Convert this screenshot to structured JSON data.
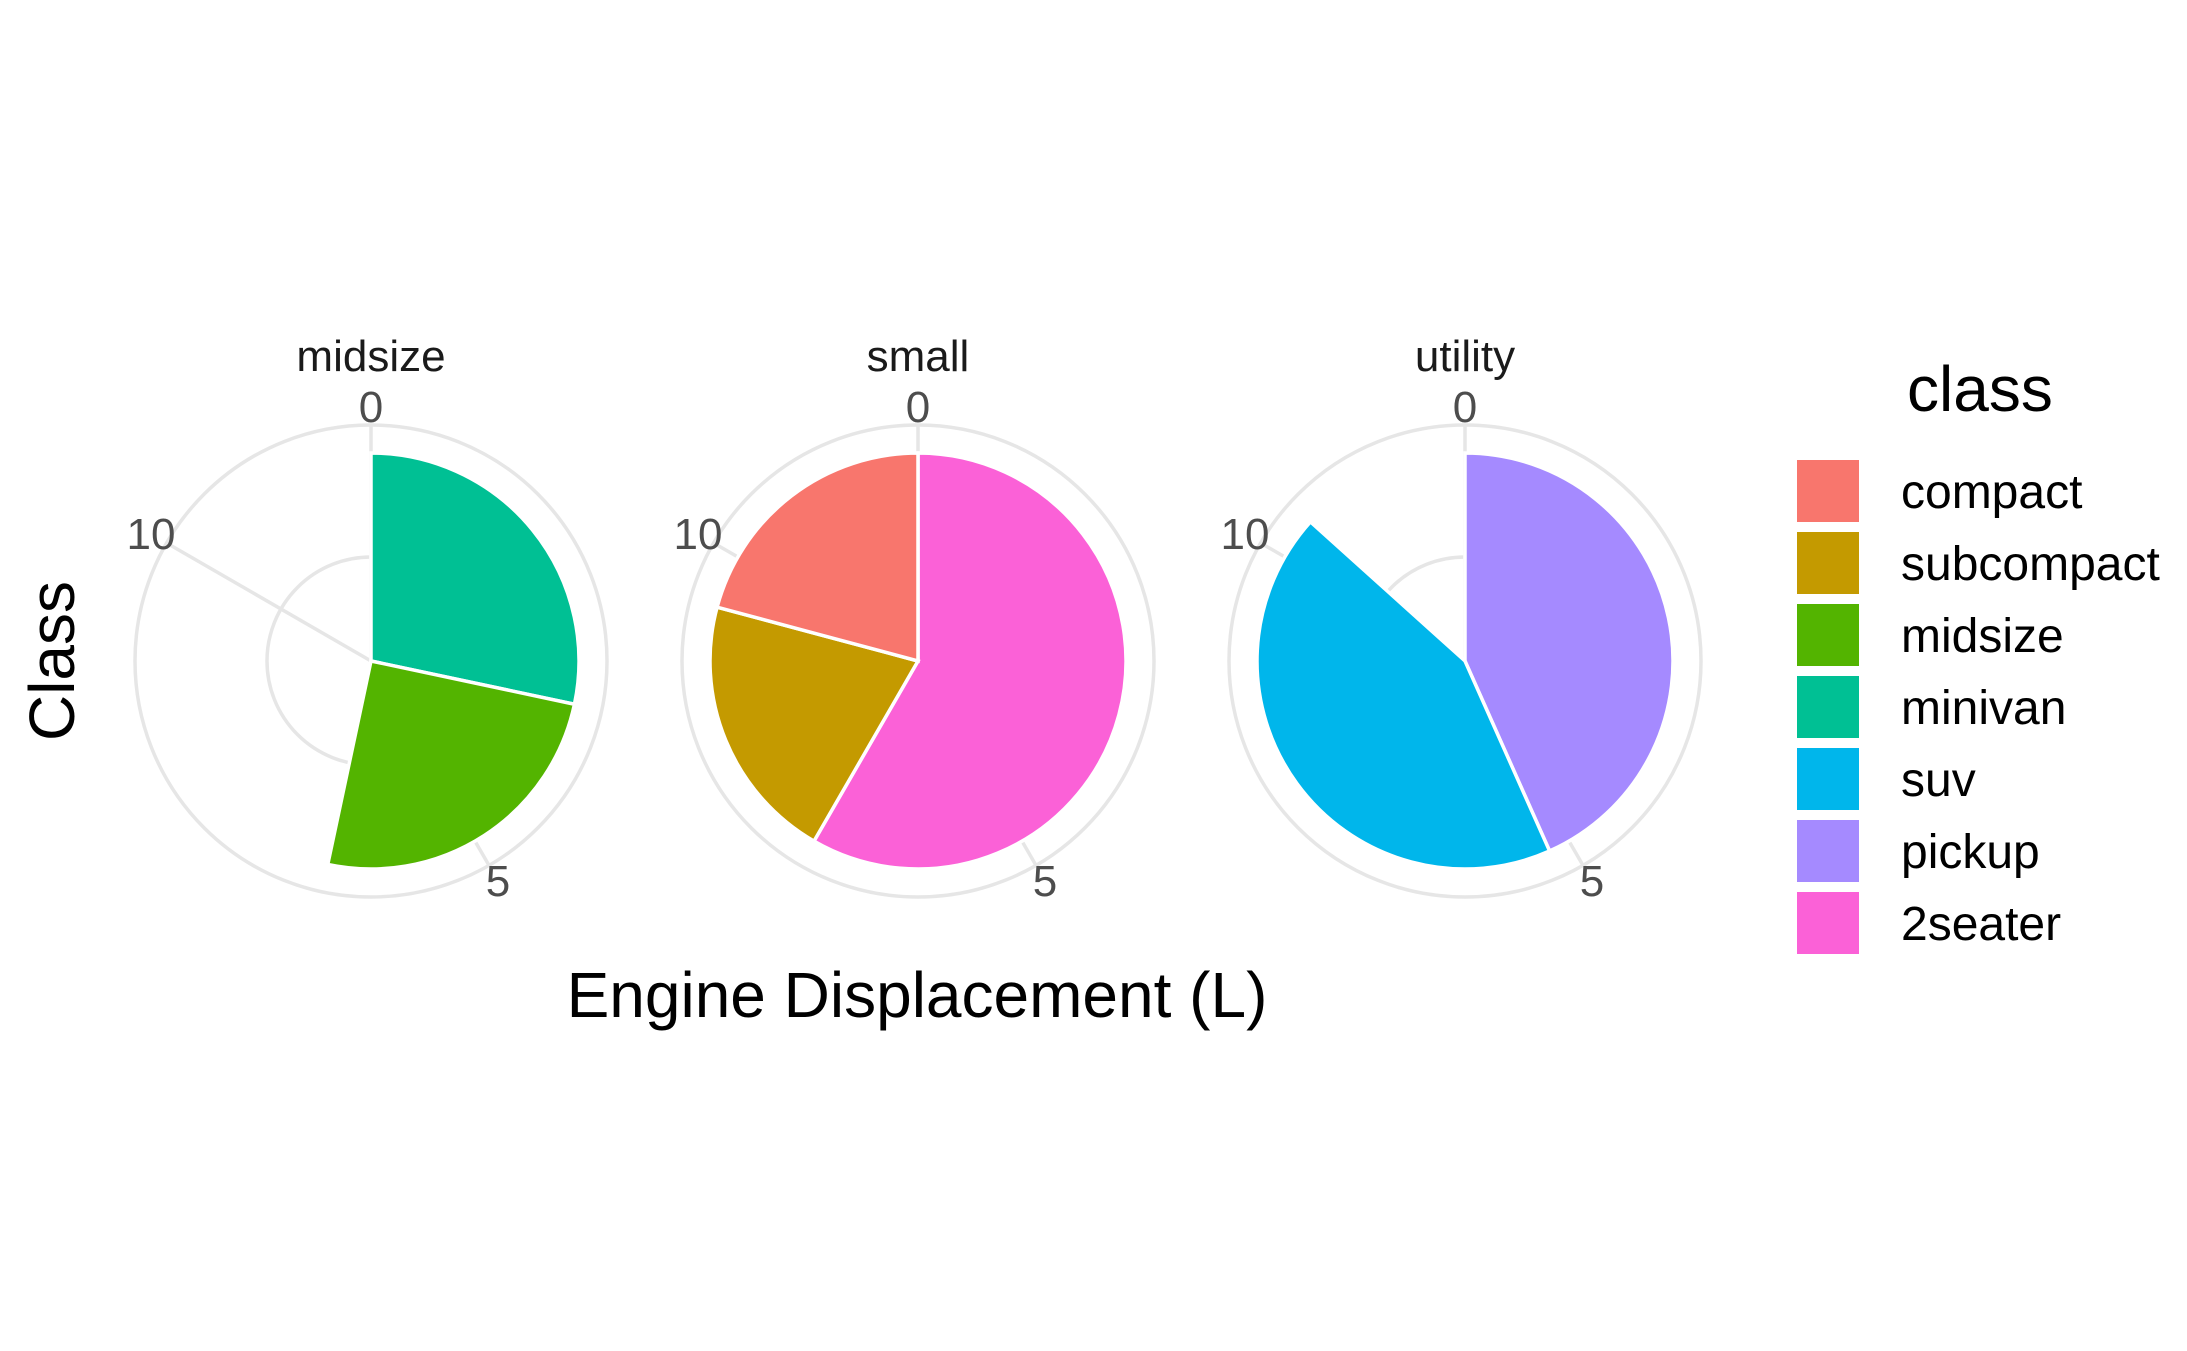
{
  "chart_data": {
    "type": "pie",
    "coord": "polar",
    "xlabel": "Engine Displacement (L)",
    "ylabel": "Class",
    "theta_range": [
      0,
      12
    ],
    "theta_ticks": [
      0,
      5,
      10
    ],
    "legend": {
      "title": "class",
      "position": "right",
      "entries": [
        "compact",
        "subcompact",
        "midsize",
        "minivan",
        "suv",
        "pickup",
        "2seater"
      ]
    },
    "colors": {
      "compact": "#F8766D",
      "subcompact": "#C49A00",
      "midsize": "#53B400",
      "minivan": "#00C094",
      "suv": "#00B6EB",
      "pickup": "#A58AFF",
      "2seater": "#FB61D7"
    },
    "facets": [
      {
        "title": "midsize",
        "slices": [
          {
            "class": "minivan",
            "value": 3.4
          },
          {
            "class": "midsize",
            "value": 3.0
          }
        ]
      },
      {
        "title": "small",
        "slices": [
          {
            "class": "2seater",
            "value": 7.0
          },
          {
            "class": "subcompact",
            "value": 2.5
          },
          {
            "class": "compact",
            "value": 2.5
          }
        ]
      },
      {
        "title": "utility",
        "slices": [
          {
            "class": "pickup",
            "value": 5.2
          },
          {
            "class": "suv",
            "value": 5.2
          }
        ]
      }
    ]
  }
}
